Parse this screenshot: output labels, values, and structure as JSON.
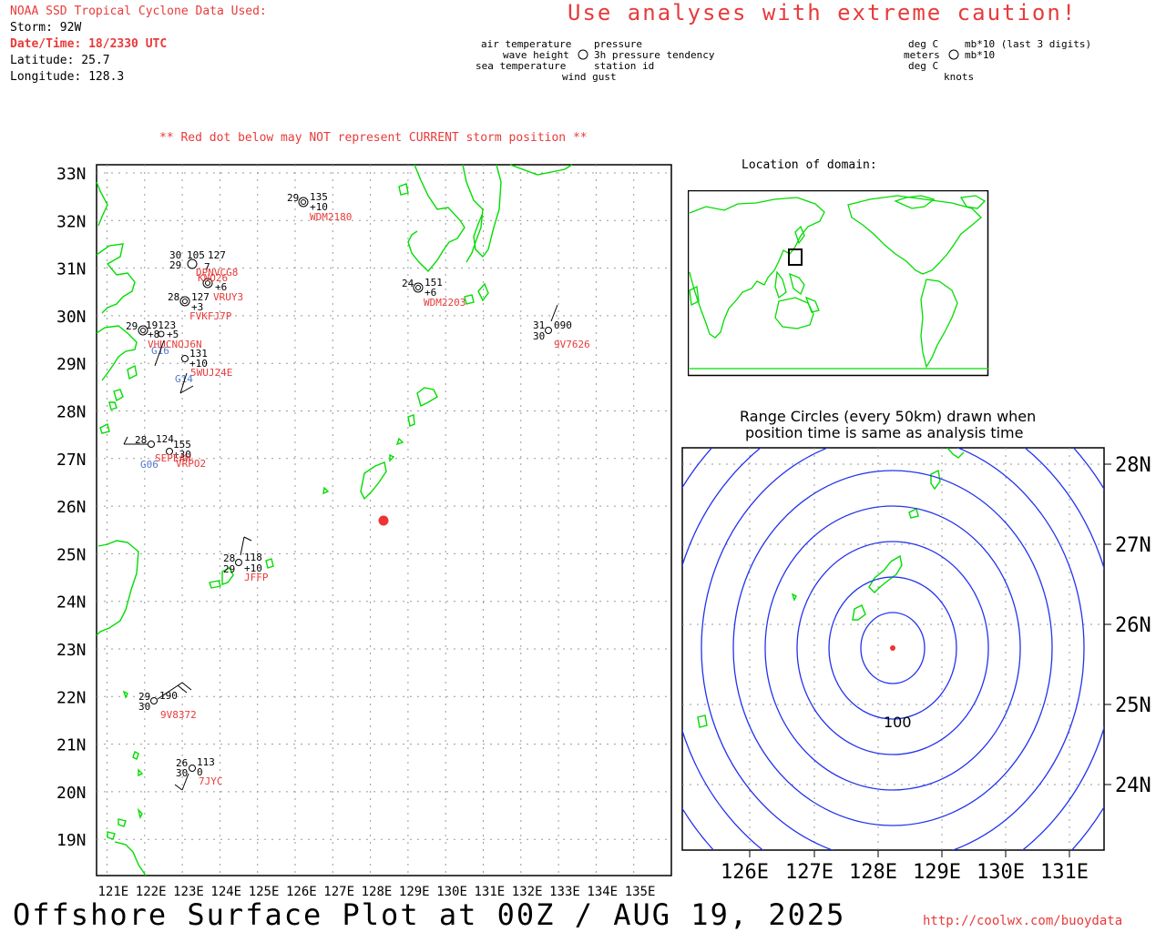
{
  "header": {
    "source": "NOAA SSD Tropical Cyclone Data Used:",
    "storm": "Storm: 92W",
    "datetime": "Date/Time: 18/2330 UTC",
    "latitude": "Latitude: 25.7",
    "longitude": "Longitude: 128.3",
    "caution": "Use analyses with extreme caution!"
  },
  "legend_left": {
    "air_temperature": "air temperature",
    "wave_height": "wave height",
    "sea_temperature": "sea temperature",
    "pressure": "pressure",
    "tendency": "3h pressure tendency",
    "station_id": "station id",
    "wind_gust": "wind gust"
  },
  "legend_right": {
    "deg_c_top": "deg C",
    "meters": "meters",
    "deg_c_bottom": "deg C",
    "mb_last3": "mb*10 (last 3 digits)",
    "mb10": "mb*10",
    "knots": "knots"
  },
  "red_dot_note": "** Red dot below may NOT represent CURRENT storm position **",
  "main_map": {
    "lat_labels": [
      "33N",
      "32N",
      "31N",
      "30N",
      "29N",
      "28N",
      "27N",
      "26N",
      "25N",
      "24N",
      "23N",
      "22N",
      "21N",
      "20N",
      "19N"
    ],
    "lon_labels": [
      "121E",
      "122E",
      "123E",
      "124E",
      "125E",
      "126E",
      "127E",
      "128E",
      "129E",
      "130E",
      "131E",
      "132E",
      "133E",
      "134E",
      "135E"
    ],
    "storm_marker_color": "#ee3333",
    "coast_color": "#00dd00",
    "stations": [
      {
        "id": "WDM2180",
        "lines": [
          "29",
          "135",
          "+10"
        ]
      },
      {
        "id": "DPNVCG8",
        "lines": [
          "30",
          "105",
          "127",
          "29",
          "7"
        ]
      },
      {
        "id": "KNO26",
        "lines": [
          "+6"
        ]
      },
      {
        "id": "VRUY3",
        "lines": [
          "28",
          "127",
          "+3"
        ]
      },
      {
        "id": "FVKFJ7P",
        "lines": []
      },
      {
        "id": "WDM2203",
        "lines": [
          "24",
          "151",
          "+6"
        ]
      },
      {
        "id": "9V7626",
        "lines": [
          "31",
          "090",
          "30"
        ]
      },
      {
        "id": "VHUCNOJ6N",
        "lines": [
          "29",
          "19123",
          "+8",
          "+5"
        ]
      },
      {
        "id": "G16",
        "lines": []
      },
      {
        "id": "5WUJ24E",
        "lines": [
          "131",
          "+10"
        ]
      },
      {
        "id": "G14",
        "lines": []
      },
      {
        "id": "VRPO2",
        "lines": [
          "28",
          "124",
          "155",
          "+30"
        ]
      },
      {
        "id": "SEPEAW",
        "lines": []
      },
      {
        "id": "G06",
        "lines": []
      },
      {
        "id": "JFFP",
        "lines": [
          "28",
          "118",
          "29",
          "+10"
        ]
      },
      {
        "id": "9V8372",
        "lines": [
          "29",
          "190",
          "30"
        ]
      },
      {
        "id": "7JYC",
        "lines": [
          "26",
          "113",
          "30",
          "0"
        ]
      }
    ]
  },
  "inset": {
    "title": "Location of domain:"
  },
  "range_map": {
    "title_line1": "Range Circles (every 50km) drawn when",
    "title_line2": "position time is same as analysis time",
    "lat_labels": [
      "28N",
      "27N",
      "26N",
      "25N",
      "24N"
    ],
    "lon_labels": [
      "126E",
      "127E",
      "128E",
      "129E",
      "130E",
      "131E"
    ],
    "circle_label": "100",
    "circle_color": "#2233ee"
  },
  "footer": {
    "title": "Offshore Surface Plot at 00Z / AUG 19, 2025",
    "url": "http://coolwx.com/buoydata"
  }
}
